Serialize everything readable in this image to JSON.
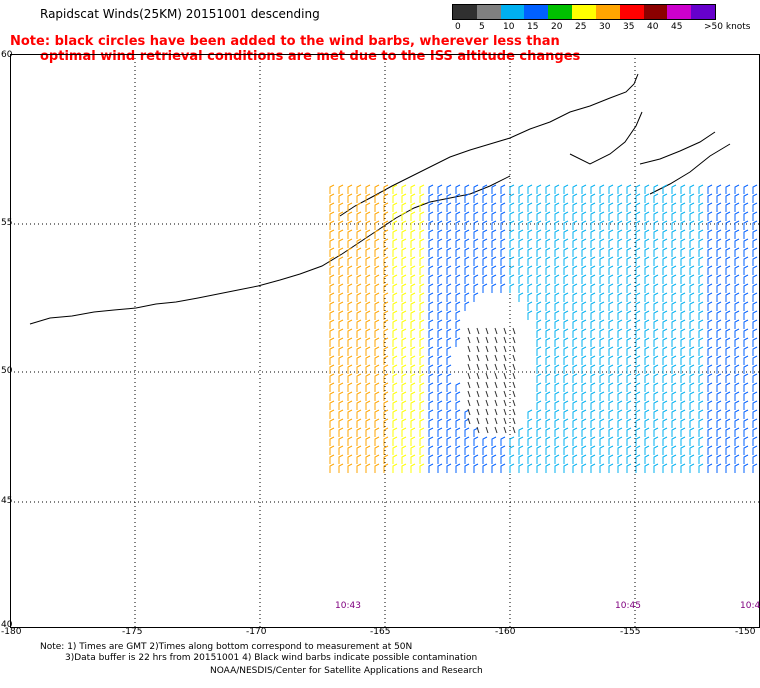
{
  "header": {
    "title": "Rapidscat Winds(25KM) 20151001 descending",
    "note_line1": "Note: black circles have been added to the wind barbs, wherever less than",
    "note_line2": "optimal wind retrieval conditions are met due to the ISS altitude changes"
  },
  "legend": {
    "labels": [
      "0",
      "5",
      "10",
      "15",
      "20",
      "25",
      "30",
      "35",
      "40",
      "45",
      ">50 knots"
    ],
    "colors": [
      "#303030",
      "#808080",
      "#00b0f0",
      "#0060ff",
      "#00c000",
      "#ffff00",
      "#ffa500",
      "#ff0000",
      "#8b0000",
      "#cc00cc",
      "#6600cc"
    ]
  },
  "map": {
    "lat_labels": [
      "60",
      "55",
      "50",
      "45",
      "40"
    ],
    "lon_labels": [
      "-180",
      "-175",
      "-170",
      "-165",
      "-160",
      "-155",
      "-150"
    ],
    "time_labels": [
      "10:43",
      "10:45",
      "10:4"
    ]
  },
  "footer": {
    "line1": "Note: 1) Times are GMT 2)Times along bottom correspond to measurement at 50N",
    "line2": "3)Data buffer is 22 hrs from 20151001 4) Black wind barbs indicate possible contamination",
    "line3": "NOAA/NESDIS/Center for Satellite Applications and Research"
  }
}
